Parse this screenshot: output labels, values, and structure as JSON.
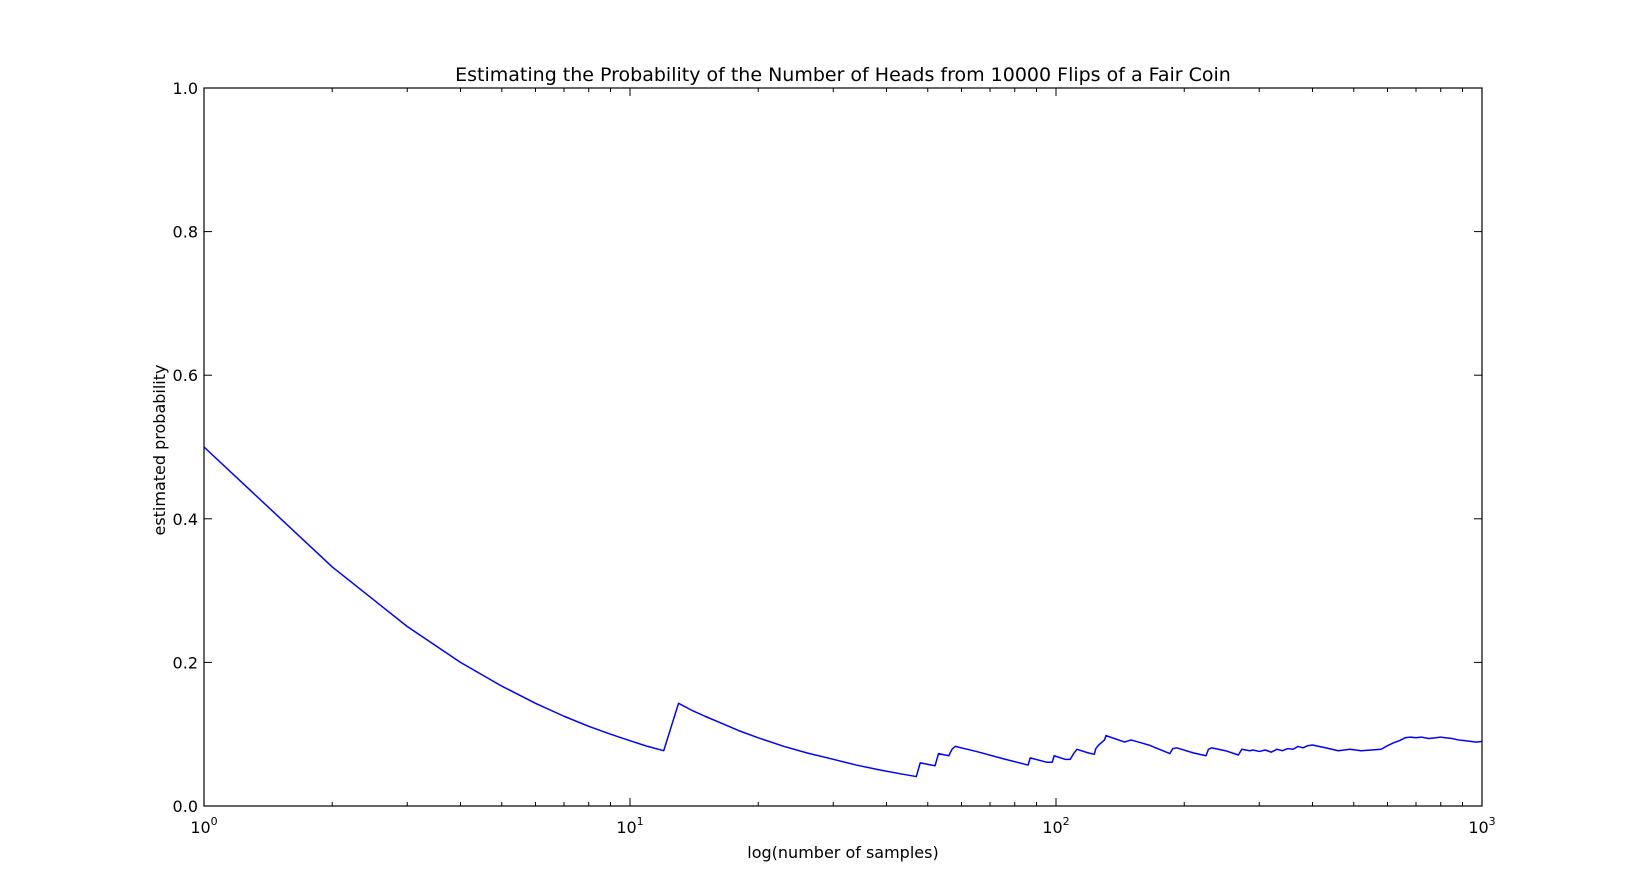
{
  "chart_data": {
    "type": "line",
    "title": "Estimating the Probability of the Number of Heads from 10000 Flips of a Fair Coin",
    "xlabel": "log(number of samples)",
    "ylabel": "estimated probability",
    "xscale": "log",
    "xlim": [
      1,
      1000
    ],
    "ylim": [
      0.0,
      1.0
    ],
    "grid": false,
    "legend": "none",
    "line_color": "#0000ff",
    "x_ticks": [
      {
        "value": 1,
        "base": "10",
        "exp": "0"
      },
      {
        "value": 10,
        "base": "10",
        "exp": "1"
      },
      {
        "value": 100,
        "base": "10",
        "exp": "2"
      },
      {
        "value": 1000,
        "base": "10",
        "exp": "3"
      }
    ],
    "y_ticks": [
      {
        "value": 0.0,
        "label": "0.0"
      },
      {
        "value": 0.2,
        "label": "0.2"
      },
      {
        "value": 0.4,
        "label": "0.4"
      },
      {
        "value": 0.6,
        "label": "0.6"
      },
      {
        "value": 0.8,
        "label": "0.8"
      },
      {
        "value": 1.0,
        "label": "1.0"
      }
    ],
    "series": [
      {
        "x": [
          1,
          2,
          3,
          4,
          5,
          6,
          7,
          8,
          9,
          10,
          11,
          12,
          13,
          14,
          15,
          16,
          18,
          20,
          23,
          26,
          30,
          34,
          38,
          43,
          47,
          48,
          52,
          53,
          56,
          57,
          58,
          65,
          75,
          86,
          87,
          95,
          98,
          99,
          105,
          108,
          110,
          112,
          119,
          123,
          124,
          126,
          130,
          131,
          145,
          150,
          165,
          185,
          188,
          192,
          210,
          225,
          228,
          232,
          250,
          268,
          273,
          285,
          290,
          300,
          310,
          320,
          330,
          340,
          350,
          360,
          370,
          380,
          390,
          400,
          430,
          460,
          490,
          520,
          550,
          580,
          600,
          620,
          640,
          660,
          680,
          700,
          720,
          750,
          780,
          800,
          820,
          850,
          880,
          910,
          940,
          970,
          1000
        ],
        "y": [
          0.5,
          0.333,
          0.25,
          0.2,
          0.167,
          0.143,
          0.125,
          0.111,
          0.1,
          0.091,
          0.083,
          0.077,
          0.143,
          0.133,
          0.125,
          0.118,
          0.105,
          0.095,
          0.083,
          0.074,
          0.065,
          0.057,
          0.051,
          0.045,
          0.041,
          0.06,
          0.056,
          0.073,
          0.07,
          0.079,
          0.083,
          0.076,
          0.066,
          0.057,
          0.067,
          0.061,
          0.061,
          0.07,
          0.065,
          0.065,
          0.073,
          0.079,
          0.074,
          0.072,
          0.08,
          0.085,
          0.092,
          0.098,
          0.089,
          0.092,
          0.085,
          0.073,
          0.08,
          0.081,
          0.074,
          0.07,
          0.079,
          0.081,
          0.077,
          0.071,
          0.079,
          0.077,
          0.078,
          0.076,
          0.078,
          0.075,
          0.079,
          0.077,
          0.08,
          0.079,
          0.083,
          0.081,
          0.084,
          0.085,
          0.081,
          0.077,
          0.079,
          0.077,
          0.078,
          0.079,
          0.084,
          0.088,
          0.091,
          0.095,
          0.096,
          0.095,
          0.096,
          0.094,
          0.095,
          0.096,
          0.095,
          0.094,
          0.092,
          0.091,
          0.09,
          0.089,
          0.09
        ]
      }
    ]
  }
}
